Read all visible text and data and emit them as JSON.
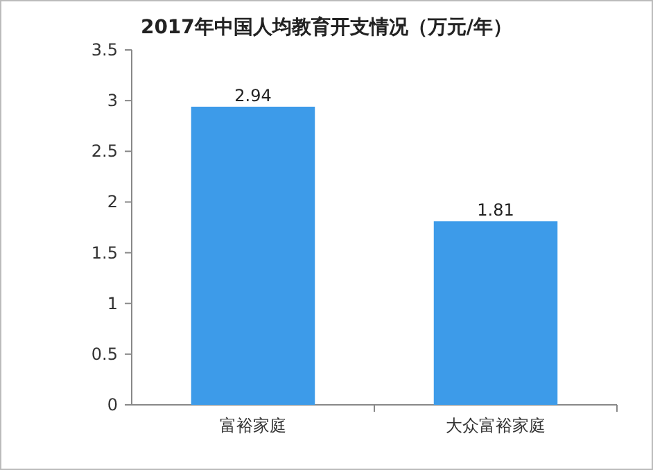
{
  "chart_data": {
    "type": "bar",
    "title": "2017年中国人均教育开支情况（万元/年）",
    "categories": [
      "富裕家庭",
      "大众富裕家庭"
    ],
    "values": [
      2.94,
      1.81
    ],
    "color": "#3d9be9",
    "ylim": [
      0,
      3.5
    ],
    "yticks": [
      0,
      0.5,
      1,
      1.5,
      2,
      2.5,
      3,
      3.5
    ],
    "grid": false,
    "data_labels": true
  }
}
